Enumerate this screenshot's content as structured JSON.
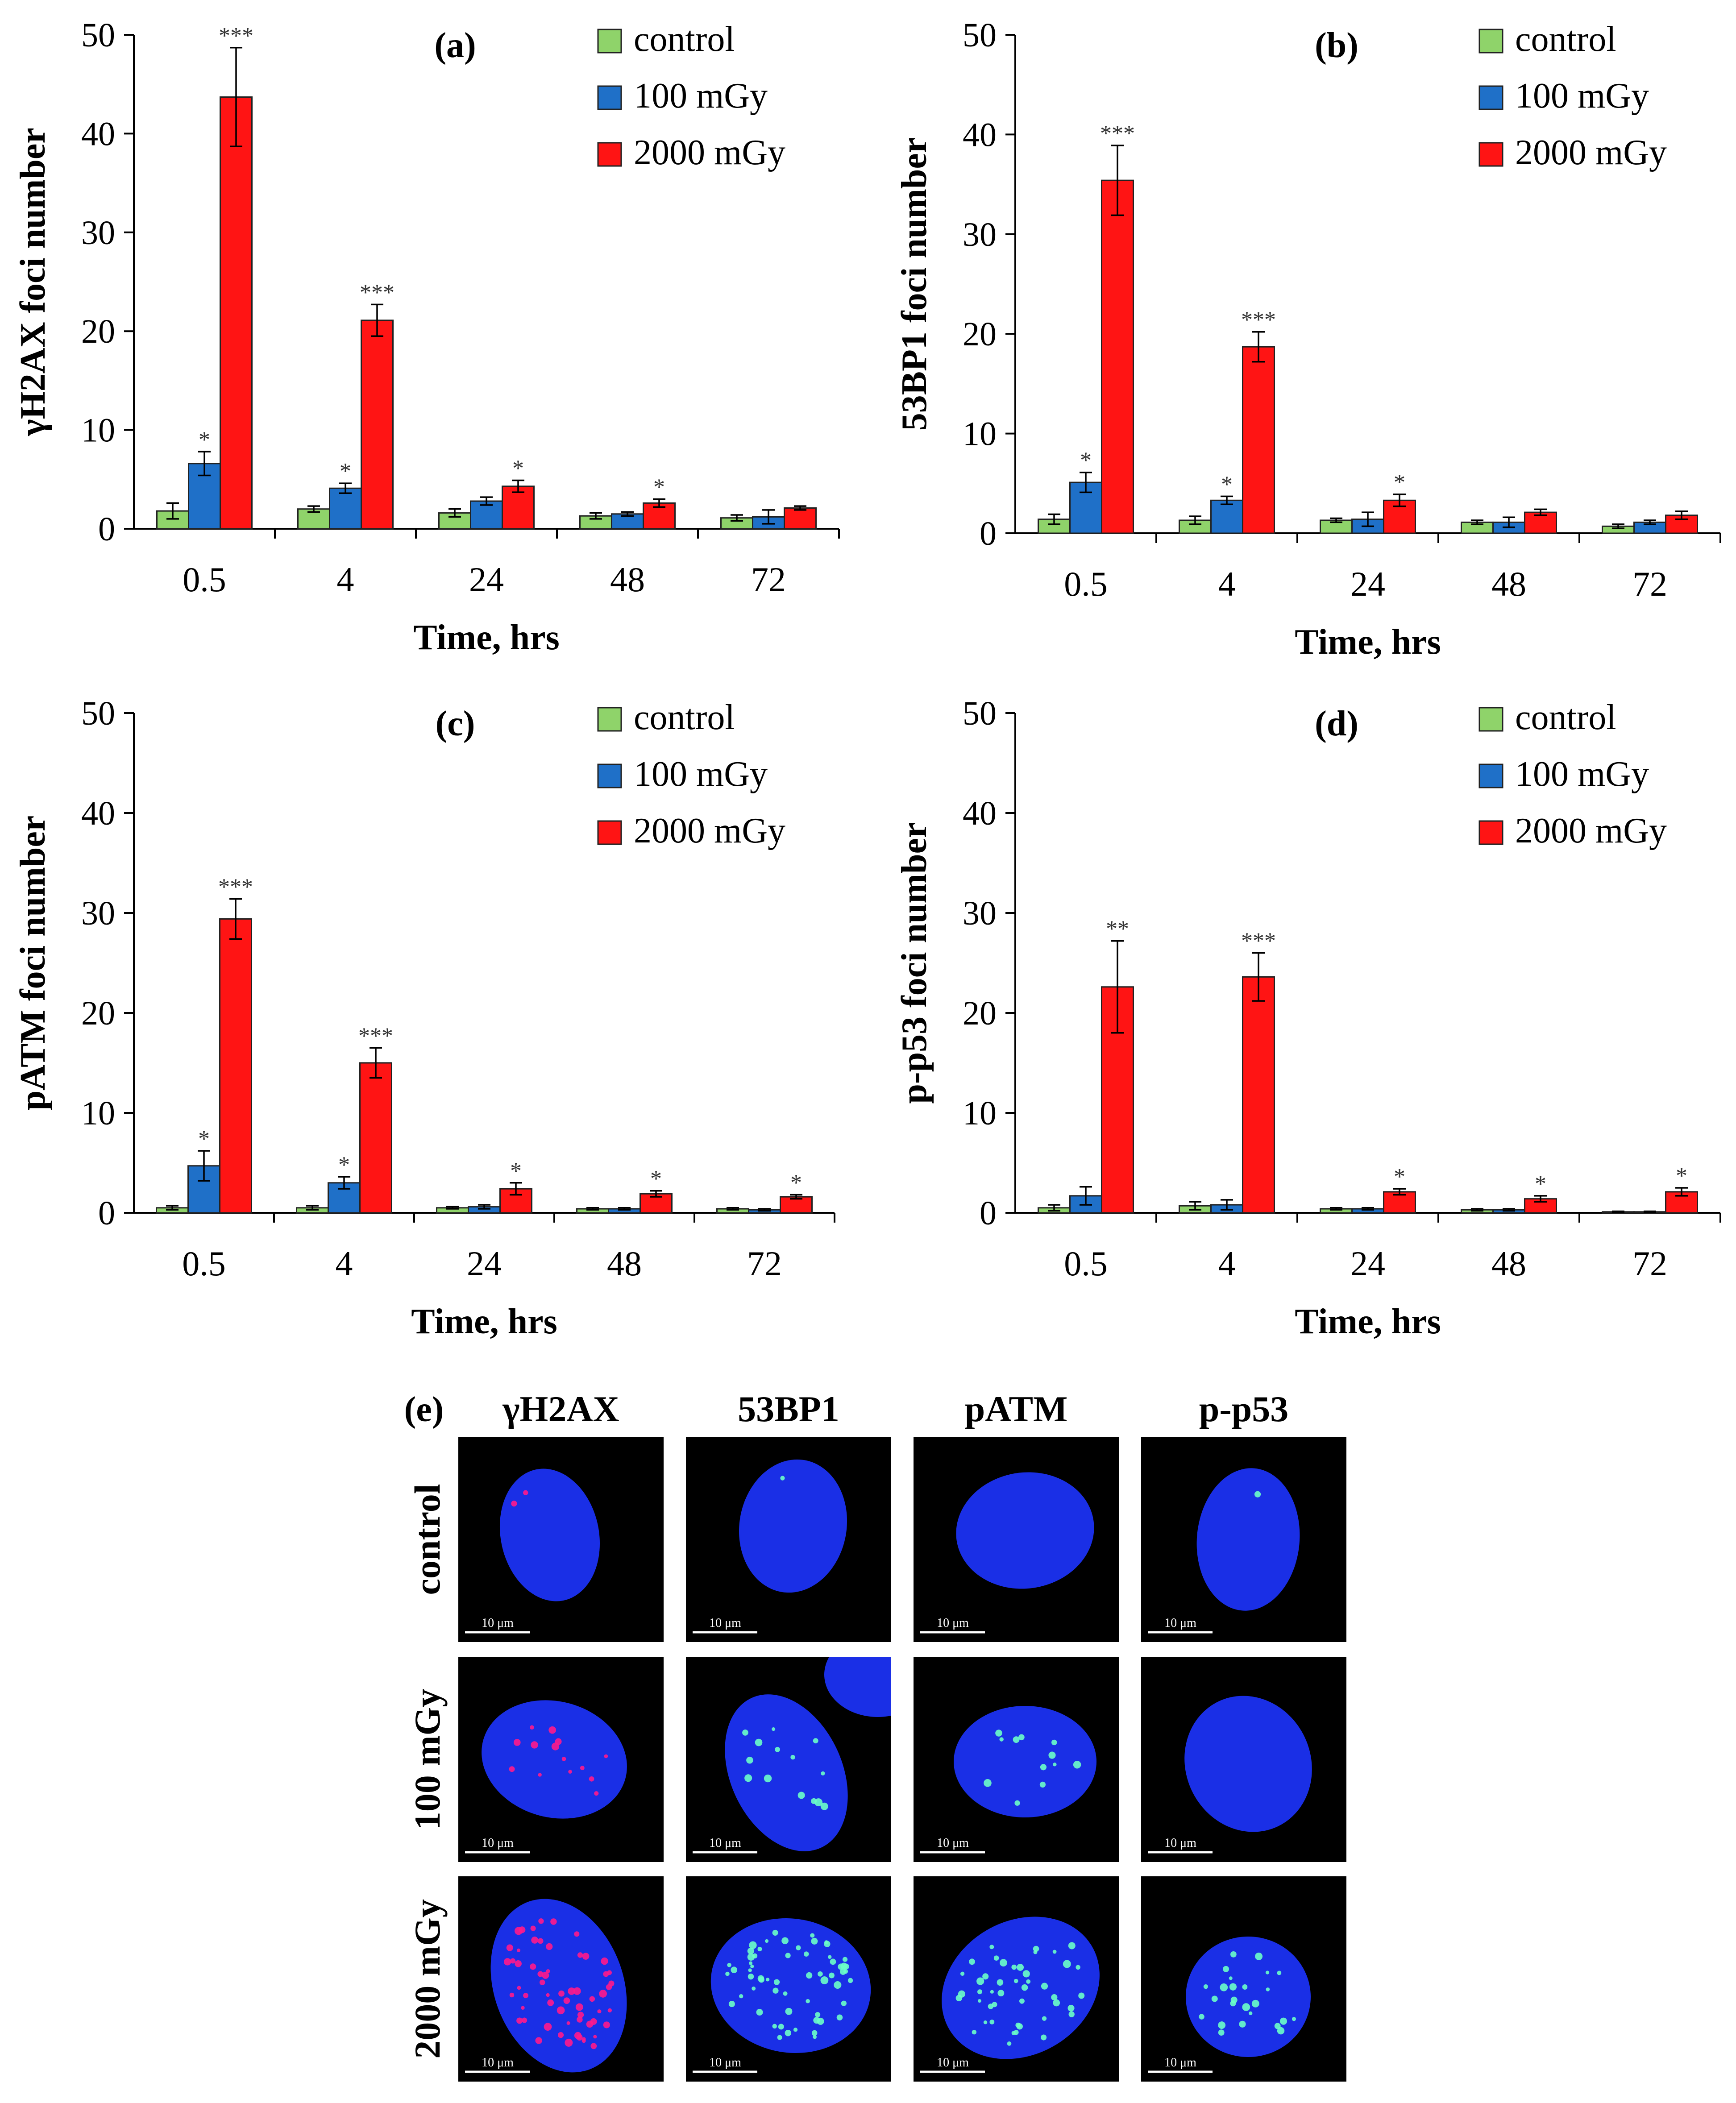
{
  "colors": {
    "control": "#8fd36a",
    "mid": "#1f70c8",
    "high": "#ff1414",
    "bar_stroke": "#222222",
    "axis": "#000000",
    "panel_bg": "#000000",
    "nucleus": "#1a2fe6",
    "red_foci": "#ff1a8c",
    "green_foci": "#6cffc8",
    "scalebar": "#ffffff"
  },
  "legend": [
    "control",
    "100 mGy",
    "2000 mGy"
  ],
  "chart_data": [
    {
      "id": "a",
      "type": "bar",
      "panel_label": "(a)",
      "ylabel": "γH2AX foci number",
      "xlabel": "Time, hrs",
      "categories": [
        "0.5",
        "4",
        "24",
        "48",
        "72"
      ],
      "ylim": [
        0,
        50
      ],
      "yticks": [
        "0",
        "10",
        "20",
        "30",
        "40",
        "50"
      ],
      "series": [
        {
          "name": "control",
          "values": [
            1.8,
            2.0,
            1.6,
            1.3,
            1.1
          ],
          "errors": [
            0.8,
            0.3,
            0.4,
            0.3,
            0.3
          ],
          "sig": [
            "",
            "",
            "",
            "",
            ""
          ]
        },
        {
          "name": "100 mGy",
          "values": [
            6.6,
            4.1,
            2.8,
            1.5,
            1.2
          ],
          "errors": [
            1.2,
            0.5,
            0.4,
            0.2,
            0.7
          ],
          "sig": [
            "*",
            "*",
            "",
            "",
            ""
          ]
        },
        {
          "name": "2000 mGy",
          "values": [
            43.7,
            21.1,
            4.3,
            2.6,
            2.1
          ],
          "errors": [
            5.0,
            1.6,
            0.6,
            0.4,
            0.2
          ],
          "sig": [
            "***",
            "***",
            "*",
            "*",
            ""
          ]
        }
      ]
    },
    {
      "id": "b",
      "type": "bar",
      "panel_label": "(b)",
      "ylabel": "53BP1 foci number",
      "xlabel": "Time, hrs",
      "categories": [
        "0.5",
        "4",
        "24",
        "48",
        "72"
      ],
      "ylim": [
        0,
        50
      ],
      "yticks": [
        "0",
        "10",
        "20",
        "30",
        "40",
        "50"
      ],
      "series": [
        {
          "name": "control",
          "values": [
            1.4,
            1.3,
            1.3,
            1.1,
            0.7
          ],
          "errors": [
            0.5,
            0.4,
            0.2,
            0.2,
            0.2
          ],
          "sig": [
            "",
            "",
            "",
            "",
            ""
          ]
        },
        {
          "name": "100 mGy",
          "values": [
            5.1,
            3.3,
            1.4,
            1.1,
            1.1
          ],
          "errors": [
            1.0,
            0.4,
            0.7,
            0.5,
            0.2
          ],
          "sig": [
            "*",
            "*",
            "",
            "",
            ""
          ]
        },
        {
          "name": "2000 mGy",
          "values": [
            35.4,
            18.7,
            3.3,
            2.1,
            1.8
          ],
          "errors": [
            3.5,
            1.5,
            0.6,
            0.3,
            0.4
          ],
          "sig": [
            "***",
            "***",
            "*",
            "",
            ""
          ]
        }
      ]
    },
    {
      "id": "c",
      "type": "bar",
      "panel_label": "(c)",
      "ylabel": "pATM foci number",
      "xlabel": "Time, hrs",
      "categories": [
        "0.5",
        "4",
        "24",
        "48",
        "72"
      ],
      "ylim": [
        0,
        50
      ],
      "yticks": [
        "0",
        "10",
        "20",
        "30",
        "40",
        "50"
      ],
      "series": [
        {
          "name": "control",
          "values": [
            0.5,
            0.5,
            0.5,
            0.4,
            0.4
          ],
          "errors": [
            0.2,
            0.2,
            0.1,
            0.1,
            0.1
          ],
          "sig": [
            "",
            "",
            "",
            "",
            ""
          ]
        },
        {
          "name": "100 mGy",
          "values": [
            4.7,
            3.0,
            0.6,
            0.4,
            0.3
          ],
          "errors": [
            1.5,
            0.6,
            0.2,
            0.1,
            0.1
          ],
          "sig": [
            "*",
            "*",
            "",
            "",
            ""
          ]
        },
        {
          "name": "2000 mGy",
          "values": [
            29.4,
            15.0,
            2.4,
            1.9,
            1.6
          ],
          "errors": [
            2.0,
            1.5,
            0.6,
            0.3,
            0.2
          ],
          "sig": [
            "***",
            "***",
            "*",
            "*",
            "*"
          ]
        }
      ]
    },
    {
      "id": "d",
      "type": "bar",
      "panel_label": "(d)",
      "ylabel": "p-p53 foci number",
      "xlabel": "Time, hrs",
      "categories": [
        "0.5",
        "4",
        "24",
        "48",
        "72"
      ],
      "ylim": [
        0,
        50
      ],
      "yticks": [
        "0",
        "10",
        "20",
        "30",
        "40",
        "50"
      ],
      "series": [
        {
          "name": "control",
          "values": [
            0.5,
            0.7,
            0.4,
            0.3,
            0.1
          ],
          "errors": [
            0.3,
            0.4,
            0.1,
            0.1,
            0.05
          ],
          "sig": [
            "",
            "",
            "",
            "",
            ""
          ]
        },
        {
          "name": "100 mGy",
          "values": [
            1.7,
            0.8,
            0.4,
            0.3,
            0.1
          ],
          "errors": [
            0.9,
            0.5,
            0.1,
            0.1,
            0.05
          ],
          "sig": [
            "",
            "",
            "",
            "",
            ""
          ]
        },
        {
          "name": "2000 mGy",
          "values": [
            22.6,
            23.6,
            2.1,
            1.4,
            2.1
          ],
          "errors": [
            4.6,
            2.4,
            0.3,
            0.3,
            0.4
          ],
          "sig": [
            "**",
            "***",
            "*",
            "*",
            "*"
          ]
        }
      ]
    }
  ],
  "micrographs": {
    "panel_label": "(e)",
    "columns": [
      "γH2AX",
      "53BP1",
      "pATM",
      "p-p53"
    ],
    "rows": [
      "control",
      "100 mGy",
      "2000 mGy"
    ],
    "scale_label": "10 μm",
    "foci_counts": [
      [
        2,
        1,
        0,
        1
      ],
      [
        14,
        14,
        12,
        0
      ],
      [
        60,
        60,
        45,
        25
      ]
    ]
  }
}
